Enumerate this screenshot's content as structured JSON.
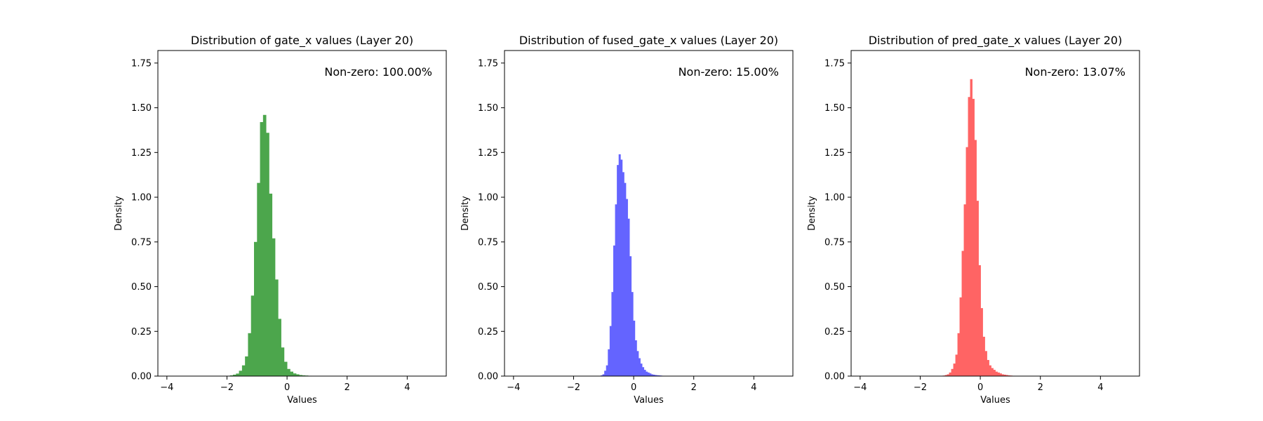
{
  "chart_data": [
    {
      "type": "bar",
      "title": "Distribution of gate_x values (Layer 20)",
      "xlabel": "Values",
      "ylabel": "Density",
      "annotation": "Non-zero: 100.00%",
      "color": "#4ca64c",
      "xlim": [
        -4.3,
        5.3
      ],
      "ylim": [
        0,
        1.82
      ],
      "xticks": [
        -4,
        -2,
        0,
        2,
        4
      ],
      "yticks": [
        0.0,
        0.25,
        0.5,
        0.75,
        1.0,
        1.25,
        1.5,
        1.75
      ],
      "xtick_labels": [
        "−4",
        "−2",
        "0",
        "2",
        "4"
      ],
      "ytick_labels": [
        "0.00",
        "0.25",
        "0.50",
        "0.75",
        "1.00",
        "1.25",
        "1.50",
        "1.75"
      ],
      "bins": {
        "start": -1.9,
        "width": 0.1,
        "values": [
          0.004,
          0.008,
          0.014,
          0.03,
          0.06,
          0.11,
          0.24,
          0.45,
          0.75,
          1.08,
          1.42,
          1.46,
          1.36,
          1.02,
          0.77,
          0.54,
          0.32,
          0.16,
          0.08,
          0.04,
          0.025,
          0.015,
          0.01,
          0.006,
          0.004,
          0.003,
          0.002,
          0.001
        ]
      }
    },
    {
      "type": "bar",
      "title": "Distribution of fused_gate_x values (Layer 20)",
      "xlabel": "Values",
      "ylabel": "Density",
      "annotation": "Non-zero: 15.00%",
      "color": "#6464ff",
      "xlim": [
        -4.3,
        5.3
      ],
      "ylim": [
        0,
        1.82
      ],
      "xticks": [
        -4,
        -2,
        0,
        2,
        4
      ],
      "yticks": [
        0.0,
        0.25,
        0.5,
        0.75,
        1.0,
        1.25,
        1.5,
        1.75
      ],
      "xtick_labels": [
        "−4",
        "−2",
        "0",
        "2",
        "4"
      ],
      "ytick_labels": [
        "0.00",
        "0.25",
        "0.50",
        "0.75",
        "1.00",
        "1.25",
        "1.50",
        "1.75"
      ],
      "bins": {
        "start": -1.1,
        "width": 0.06,
        "values": [
          0.004,
          0.01,
          0.03,
          0.06,
          0.15,
          0.28,
          0.47,
          0.73,
          0.96,
          1.18,
          1.24,
          1.21,
          1.14,
          1.08,
          0.99,
          0.88,
          0.67,
          0.47,
          0.31,
          0.2,
          0.14,
          0.1,
          0.07,
          0.05,
          0.035,
          0.025,
          0.02,
          0.015,
          0.01,
          0.008,
          0.006,
          0.005,
          0.004,
          0.003,
          0.002,
          0.001
        ]
      }
    },
    {
      "type": "bar",
      "title": "Distribution of pred_gate_x values (Layer 20)",
      "xlabel": "Values",
      "ylabel": "Density",
      "annotation": "Non-zero: 13.07%",
      "color": "#ff6464",
      "xlim": [
        -4.3,
        5.3
      ],
      "ylim": [
        0,
        1.82
      ],
      "xticks": [
        -4,
        -2,
        0,
        2,
        4
      ],
      "yticks": [
        0.0,
        0.25,
        0.5,
        0.75,
        1.0,
        1.25,
        1.5,
        1.75
      ],
      "xtick_labels": [
        "−4",
        "−2",
        "0",
        "2",
        "4"
      ],
      "ytick_labels": [
        "0.00",
        "0.25",
        "0.50",
        "0.75",
        "1.00",
        "1.25",
        "1.50",
        "1.75"
      ],
      "bins": {
        "start": -1.25,
        "width": 0.07,
        "values": [
          0.003,
          0.006,
          0.01,
          0.02,
          0.04,
          0.07,
          0.12,
          0.24,
          0.44,
          0.7,
          0.96,
          1.28,
          1.56,
          1.66,
          1.55,
          1.32,
          0.98,
          0.62,
          0.38,
          0.22,
          0.14,
          0.09,
          0.06,
          0.045,
          0.035,
          0.025,
          0.02,
          0.015,
          0.01,
          0.008,
          0.006,
          0.004,
          0.003,
          0.002,
          0.001
        ]
      }
    }
  ]
}
